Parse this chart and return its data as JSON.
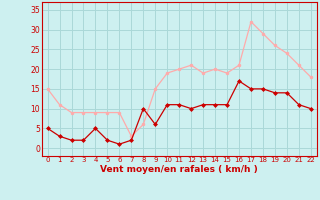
{
  "x": [
    0,
    1,
    2,
    3,
    4,
    5,
    6,
    7,
    8,
    9,
    10,
    11,
    12,
    13,
    14,
    15,
    16,
    17,
    18,
    19,
    20,
    21,
    22
  ],
  "vent_moyen": [
    5,
    3,
    2,
    2,
    5,
    2,
    1,
    2,
    10,
    6,
    11,
    11,
    10,
    11,
    11,
    11,
    17,
    15,
    15,
    14,
    14,
    11,
    10
  ],
  "rafales": [
    15,
    11,
    9,
    9,
    9,
    9,
    9,
    3,
    6,
    15,
    19,
    20,
    21,
    19,
    20,
    19,
    21,
    32,
    29,
    26,
    24,
    21,
    18
  ],
  "color_moyen": "#cc0000",
  "color_rafales": "#ffaaaa",
  "bg_color": "#cdf0f0",
  "grid_color": "#aad8d8",
  "xlabel": "Vent moyen/en rafales ( km/h )",
  "xlabel_color": "#cc0000",
  "yticks": [
    0,
    5,
    10,
    15,
    20,
    25,
    30,
    35
  ],
  "xticks": [
    0,
    1,
    2,
    3,
    4,
    5,
    6,
    7,
    8,
    9,
    10,
    11,
    12,
    13,
    14,
    15,
    16,
    17,
    18,
    19,
    20,
    21,
    22
  ],
  "ylim": [
    -2,
    37
  ],
  "xlim": [
    -0.5,
    22.5
  ]
}
